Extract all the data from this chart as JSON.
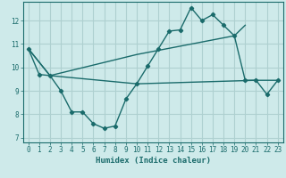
{
  "title": "",
  "xlabel": "Humidex (Indice chaleur)",
  "background_color": "#ceeaea",
  "grid_color": "#aed0d0",
  "line_color": "#1a6b6b",
  "xlim": [
    -0.5,
    23.5
  ],
  "ylim": [
    6.8,
    12.8
  ],
  "xticks": [
    0,
    1,
    2,
    3,
    4,
    5,
    6,
    7,
    8,
    9,
    10,
    11,
    12,
    13,
    14,
    15,
    16,
    17,
    18,
    19,
    20,
    21,
    22,
    23
  ],
  "yticks": [
    7,
    8,
    9,
    10,
    11,
    12
  ],
  "line1_x": [
    0,
    1,
    2,
    3,
    4,
    5,
    6,
    7,
    8,
    9,
    10,
    11,
    12,
    13,
    14,
    15,
    16,
    17,
    18,
    19,
    20,
    21,
    22,
    23
  ],
  "line1_y": [
    10.8,
    9.7,
    9.65,
    9.0,
    8.1,
    8.1,
    7.6,
    7.4,
    7.5,
    8.65,
    9.3,
    10.05,
    10.8,
    11.55,
    11.6,
    12.55,
    12.0,
    12.25,
    11.8,
    11.35,
    9.45,
    9.45,
    8.85,
    9.45
  ],
  "line2_x": [
    0,
    2,
    10,
    21,
    23
  ],
  "line2_y": [
    10.8,
    9.65,
    9.3,
    9.45,
    9.45
  ],
  "line3_x": [
    0,
    2,
    10,
    19,
    20
  ],
  "line3_y": [
    10.8,
    9.65,
    10.55,
    11.35,
    11.8
  ]
}
